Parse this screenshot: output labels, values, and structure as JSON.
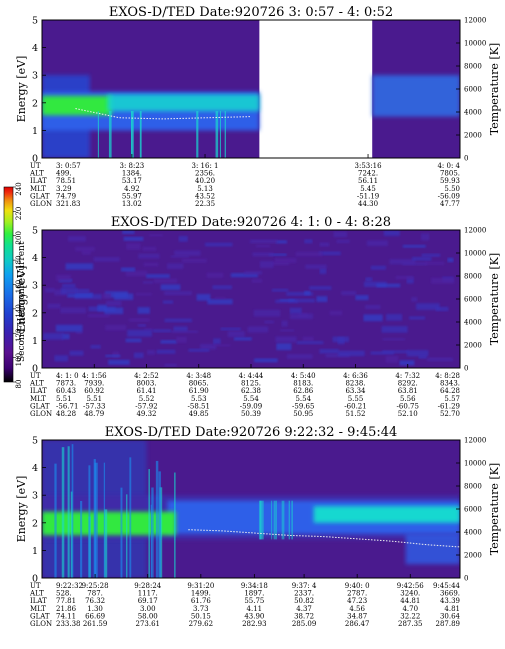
{
  "chart_data": [
    {
      "type": "heatmap",
      "title": "EXOS-D/TED   Date:920726  3: 0:57 - 4: 0:52",
      "ylabel": "Energy [eV]",
      "y2label": "Temperature [K]",
      "ylim": [
        0,
        5
      ],
      "y2lim": [
        0,
        12000
      ],
      "yticks": [
        "0",
        "1",
        "2",
        "3",
        "4",
        "5"
      ],
      "y2ticks": [
        "0",
        "2000",
        "4000",
        "6000",
        "8000",
        "10000",
        "12000"
      ],
      "row_labels": [
        "UT",
        "ALT",
        "ILAT",
        "MLT",
        "GLAT",
        "GLON"
      ],
      "columns": [
        {
          "UT": "3: 0:57",
          "ALT": "499.",
          "ILAT": "78.51",
          "MLT": "3.29",
          "GLAT": "74.79",
          "GLON": "321.83"
        },
        {
          "UT": "3: 8:23",
          "ALT": "1384.",
          "ILAT": "53.17",
          "MLT": "4.92",
          "GLAT": "55.97",
          "GLON": "13.02"
        },
        {
          "UT": "3: 16: 1",
          "ALT": "2356.",
          "ILAT": "40.20",
          "MLT": "5.13",
          "GLAT": "43.52",
          "GLON": "22.35"
        },
        {
          "UT": "3:53:16",
          "ALT": "7242.",
          "ILAT": "56.11",
          "MLT": "5.45",
          "GLAT": "-51.19",
          "GLON": "44.30"
        },
        {
          "UT": "4: 0: 4",
          "ALT": "7805.",
          "ILAT": "59.93",
          "MLT": "5.50",
          "GLAT": "-56.09",
          "GLON": "47.77"
        }
      ],
      "column_positions": [
        0.0,
        0.215,
        0.39,
        0.78,
        1.0
      ],
      "data_gap": [
        0.52,
        0.79
      ],
      "band_energy_ev": 2.0,
      "temperature_trace_k": [
        4300,
        3500,
        3400,
        3500,
        3600
      ]
    },
    {
      "type": "heatmap",
      "title": "EXOS-D/TED   Date:920726  4: 1: 0 - 4: 8:28",
      "ylabel": "Energy [eV]",
      "y2label": "Temperature [K]",
      "ylim": [
        0,
        5
      ],
      "y2lim": [
        0,
        12000
      ],
      "yticks": [
        "0",
        "1",
        "2",
        "3",
        "4",
        "5"
      ],
      "y2ticks": [
        "0",
        "2000",
        "4000",
        "6000",
        "8000",
        "10000",
        "12000"
      ],
      "row_labels": [
        "UT",
        "ALT",
        "ILAT",
        "MLT",
        "GLAT",
        "GLON"
      ],
      "columns": [
        {
          "UT": "4: 1: 0",
          "ALT": "7873.",
          "ILAT": "60.43",
          "MLT": "5.51",
          "GLAT": "-56.71",
          "GLON": "48.28"
        },
        {
          "UT": "4: 1:56",
          "ALT": "7939.",
          "ILAT": "60.92",
          "MLT": "5.51",
          "GLAT": "-57.33",
          "GLON": "48.79"
        },
        {
          "UT": "4: 2:52",
          "ALT": "8003.",
          "ILAT": "61.41",
          "MLT": "5.52",
          "GLAT": "-57.92",
          "GLON": "49.32"
        },
        {
          "UT": "4: 3:48",
          "ALT": "8065.",
          "ILAT": "61.90",
          "MLT": "5.53",
          "GLAT": "-58.51",
          "GLON": "49.85"
        },
        {
          "UT": "4: 4:44",
          "ALT": "8125.",
          "ILAT": "62.38",
          "MLT": "5.54",
          "GLAT": "-59.09",
          "GLON": "50.39"
        },
        {
          "UT": "4: 5:40",
          "ALT": "8183.",
          "ILAT": "62.86",
          "MLT": "5.54",
          "GLAT": "-59.65",
          "GLON": "50.95"
        },
        {
          "UT": "4: 6:36",
          "ALT": "8238.",
          "ILAT": "63.34",
          "MLT": "5.55",
          "GLAT": "-60.21",
          "GLON": "51.52"
        },
        {
          "UT": "4: 7:32",
          "ALT": "8292.",
          "ILAT": "63.81",
          "MLT": "5.56",
          "GLAT": "-60.75",
          "GLON": "52.10"
        },
        {
          "UT": "4: 8:28",
          "ALT": "8343.",
          "ILAT": "64.28",
          "MLT": "5.57",
          "GLAT": "-61.29",
          "GLON": "52.70"
        }
      ],
      "column_positions": [
        0.0,
        0.125,
        0.25,
        0.375,
        0.5,
        0.625,
        0.75,
        0.875,
        1.0
      ]
    },
    {
      "type": "heatmap",
      "title": "EXOS-D/TED   Date:920726  9:22:32 - 9:45:44",
      "ylabel": "Energy [eV]",
      "y2label": "Temperature [K]",
      "ylim": [
        0,
        5
      ],
      "y2lim": [
        0,
        12000
      ],
      "yticks": [
        "0",
        "1",
        "2",
        "3",
        "4",
        "5"
      ],
      "y2ticks": [
        "0",
        "2000",
        "4000",
        "6000",
        "8000",
        "10000",
        "12000"
      ],
      "row_labels": [
        "UT",
        "ALT",
        "ILAT",
        "MLT",
        "GLAT",
        "GLON"
      ],
      "columns": [
        {
          "UT": "9:22:32",
          "ALT": "528.",
          "ILAT": "77.81",
          "MLT": "21.86",
          "GLAT": "74.11",
          "GLON": "233.38"
        },
        {
          "UT": "9:25:28",
          "ALT": "787.",
          "ILAT": "76.32",
          "MLT": "1.30",
          "GLAT": "66.69",
          "GLON": "261.59"
        },
        {
          "UT": "9:28:24",
          "ALT": "1117.",
          "ILAT": "69.17",
          "MLT": "3.00",
          "GLAT": "58.00",
          "GLON": "273.61"
        },
        {
          "UT": "9:31:20",
          "ALT": "1499.",
          "ILAT": "61.76",
          "MLT": "3.73",
          "GLAT": "50.15",
          "GLON": "279.62"
        },
        {
          "UT": "9:34:18",
          "ALT": "1897.",
          "ILAT": "55.75",
          "MLT": "4.11",
          "GLAT": "43.90",
          "GLON": "282.93"
        },
        {
          "UT": "9:37: 4",
          "ALT": "2337.",
          "ILAT": "50.82",
          "MLT": "4.37",
          "GLAT": "38.72",
          "GLON": "285.09"
        },
        {
          "UT": "9:40: 0",
          "ALT": "2787.",
          "ILAT": "47.23",
          "MLT": "4.56",
          "GLAT": "34.87",
          "GLON": "286.47"
        },
        {
          "UT": "9:42:56",
          "ALT": "3240.",
          "ILAT": "44.81",
          "MLT": "4.70",
          "GLAT": "32.22",
          "GLON": "287.35"
        },
        {
          "UT": "9:45:44",
          "ALT": "3669.",
          "ILAT": "43.39",
          "MLT": "4.81",
          "GLAT": "30.64",
          "GLON": "287.89"
        }
      ],
      "column_positions": [
        0.0,
        0.127,
        0.253,
        0.38,
        0.508,
        0.627,
        0.754,
        0.881,
        1.0
      ],
      "temperature_trace_k": [
        4200,
        4100,
        3900,
        3700,
        3600,
        3400,
        3200,
        2900,
        2700
      ]
    }
  ],
  "colorbar": {
    "label": "Second Harmonic Current",
    "ticks": [
      "80",
      "100",
      "120",
      "140",
      "160",
      "180",
      "200",
      "220",
      "240"
    ],
    "range": [
      80,
      240
    ],
    "colors": [
      "#000000",
      "#3b0070",
      "#5a1090",
      "#3a20b0",
      "#2040d0",
      "#1a6ee8",
      "#10a0f0",
      "#10c8c8",
      "#10e090",
      "#30f040",
      "#a0f020",
      "#f0e010",
      "#f09010",
      "#f03010",
      "#e00000"
    ]
  },
  "colors": {
    "background": "#4a1a8e",
    "background_mid": "#3f2aa8",
    "blue_band": "#2f5ee8",
    "cyan": "#19d8d0",
    "green": "#30e840",
    "trace": "#f0f0f0"
  }
}
